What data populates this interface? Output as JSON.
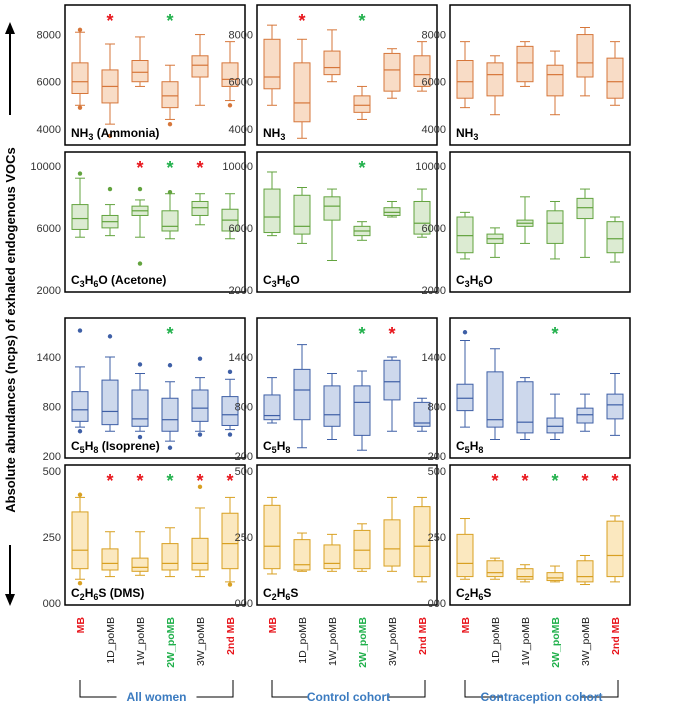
{
  "y_axis_label": "Absolute abundances (ncps) of exhaled endogenous VOCs",
  "x_categories": [
    "MB",
    "1D_poMB",
    "1W_poMB",
    "2W_poMB",
    "3W_poMB",
    "2nd MB"
  ],
  "category_colors": [
    "#e8141b",
    "#1a1a1a",
    "#1a1a1a",
    "#20b04b",
    "#1a1a1a",
    "#e8141b"
  ],
  "groups": [
    "All women",
    "Control cohort",
    "Contraception cohort"
  ],
  "group_label_color": "#3b7bc0",
  "significance_colors": {
    "red": "#e8141b",
    "green": "#20b04b"
  },
  "significance_symbol": "*",
  "rows": [
    {
      "compound": "NH3",
      "fill": "#f8dcc6",
      "stroke": "#d6763a",
      "yticks": [
        "8000",
        "6000",
        "4000"
      ],
      "ylim": [
        3400,
        9000
      ]
    },
    {
      "compound": "C3H6O",
      "fill": "#dcebd2",
      "stroke": "#62a33e",
      "yticks": [
        "10000",
        "6000",
        "2000"
      ],
      "ylim": [
        2000,
        10500
      ]
    },
    {
      "compound": "C5H8",
      "fill": "#cdd8ec",
      "stroke": "#3e5fa6",
      "yticks": [
        "1400",
        "800",
        "200"
      ],
      "ylim": [
        200,
        1800
      ]
    },
    {
      "compound": "C2H6S",
      "fill": "#fbe8bf",
      "stroke": "#d8a022",
      "yticks": [
        "500",
        "250",
        "000"
      ],
      "ylim": [
        0,
        500
      ]
    }
  ],
  "panel_labels": [
    [
      "NH3 (Ammonia)",
      "NH3",
      "NH3"
    ],
    [
      "C3H6O (Acetone)",
      "C3H6O",
      "C3H6O"
    ],
    [
      "C5H8 (Isoprene)",
      "C5H8",
      "C5H8"
    ],
    [
      "C2H6S (DMS)",
      "C2H6S",
      "C2H6S"
    ]
  ],
  "chart_data": {
    "type": "boxplot",
    "categories": [
      "MB",
      "1D_poMB",
      "1W_poMB",
      "2W_poMB",
      "3W_poMB",
      "2nd MB"
    ],
    "series": [
      {
        "name": "All women",
        "compound": "NH3",
        "boxes": [
          {
            "min": 5000,
            "q1": 5500,
            "median": 6000,
            "q3": 6800,
            "max": 8100,
            "outliers": [
              4900,
              8200
            ]
          },
          {
            "min": 4200,
            "q1": 5100,
            "median": 5800,
            "q3": 6500,
            "max": 7600,
            "outliers": [
              3700
            ]
          },
          {
            "min": 5800,
            "q1": 6000,
            "median": 6400,
            "q3": 6900,
            "max": 7900,
            "outliers": []
          },
          {
            "min": 4400,
            "q1": 4900,
            "median": 5400,
            "q3": 6000,
            "max": 6700,
            "outliers": [
              4200
            ]
          },
          {
            "min": 5000,
            "q1": 6200,
            "median": 6700,
            "q3": 7100,
            "max": 8000,
            "outliers": []
          },
          {
            "min": 5200,
            "q1": 5800,
            "median": 6100,
            "q3": 6800,
            "max": 7700,
            "outliers": [
              5000
            ]
          }
        ],
        "significance": [
          "",
          "red",
          "",
          "green",
          "",
          ""
        ]
      },
      {
        "name": "Control cohort",
        "compound": "NH3",
        "boxes": [
          {
            "min": 5000,
            "q1": 5700,
            "median": 6200,
            "q3": 7800,
            "max": 8400,
            "outliers": []
          },
          {
            "min": 3600,
            "q1": 4300,
            "median": 5100,
            "q3": 6800,
            "max": 7800,
            "outliers": []
          },
          {
            "min": 6000,
            "q1": 6300,
            "median": 6600,
            "q3": 7300,
            "max": 8200,
            "outliers": []
          },
          {
            "min": 4400,
            "q1": 4700,
            "median": 5000,
            "q3": 5400,
            "max": 5800,
            "outliers": []
          },
          {
            "min": 5300,
            "q1": 5600,
            "median": 6500,
            "q3": 7200,
            "max": 7400,
            "outliers": []
          },
          {
            "min": 5600,
            "q1": 5800,
            "median": 6300,
            "q3": 7100,
            "max": 7700,
            "outliers": []
          }
        ],
        "significance": [
          "",
          "red",
          "",
          "green",
          "",
          ""
        ]
      },
      {
        "name": "Contraception cohort",
        "compound": "NH3",
        "boxes": [
          {
            "min": 4900,
            "q1": 5300,
            "median": 6000,
            "q3": 6900,
            "max": 7700,
            "outliers": []
          },
          {
            "min": 4600,
            "q1": 5400,
            "median": 6300,
            "q3": 6800,
            "max": 7100,
            "outliers": []
          },
          {
            "min": 5800,
            "q1": 6000,
            "median": 6800,
            "q3": 7500,
            "max": 7700,
            "outliers": []
          },
          {
            "min": 4600,
            "q1": 5400,
            "median": 6300,
            "q3": 6700,
            "max": 7300,
            "outliers": []
          },
          {
            "min": 5400,
            "q1": 6200,
            "median": 6800,
            "q3": 8000,
            "max": 8300,
            "outliers": []
          },
          {
            "min": 5000,
            "q1": 5300,
            "median": 6000,
            "q3": 7000,
            "max": 7700,
            "outliers": []
          }
        ],
        "significance": [
          "",
          "",
          "",
          "",
          "",
          ""
        ]
      },
      {
        "name": "All women",
        "compound": "C3H6O",
        "boxes": [
          {
            "min": 5400,
            "q1": 5900,
            "median": 6600,
            "q3": 7500,
            "max": 9200,
            "outliers": [
              9500
            ]
          },
          {
            "min": 5500,
            "q1": 6000,
            "median": 6400,
            "q3": 6800,
            "max": 7500,
            "outliers": [
              8500
            ]
          },
          {
            "min": 5400,
            "q1": 6800,
            "median": 7100,
            "q3": 7400,
            "max": 7800,
            "outliers": [
              3700,
              8500
            ]
          },
          {
            "min": 5300,
            "q1": 5800,
            "median": 6100,
            "q3": 7100,
            "max": 8200,
            "outliers": [
              8300
            ]
          },
          {
            "min": 6200,
            "q1": 6800,
            "median": 7300,
            "q3": 7700,
            "max": 8200,
            "outliers": []
          },
          {
            "min": 5300,
            "q1": 5800,
            "median": 6500,
            "q3": 7200,
            "max": 8200,
            "outliers": []
          }
        ],
        "significance": [
          "",
          "",
          "red",
          "green",
          "red",
          ""
        ]
      },
      {
        "name": "Control cohort",
        "compound": "C3H6O",
        "boxes": [
          {
            "min": 5500,
            "q1": 5700,
            "median": 6700,
            "q3": 8500,
            "max": 9600,
            "outliers": []
          },
          {
            "min": 5000,
            "q1": 5600,
            "median": 6100,
            "q3": 8100,
            "max": 8600,
            "outliers": []
          },
          {
            "min": 3900,
            "q1": 6500,
            "median": 7400,
            "q3": 8000,
            "max": 8500,
            "outliers": []
          },
          {
            "min": 5200,
            "q1": 5500,
            "median": 5800,
            "q3": 6100,
            "max": 6400,
            "outliers": []
          },
          {
            "min": 6700,
            "q1": 6800,
            "median": 7000,
            "q3": 7300,
            "max": 7700,
            "outliers": []
          },
          {
            "min": 5400,
            "q1": 5600,
            "median": 6300,
            "q3": 7700,
            "max": 8500,
            "outliers": []
          }
        ],
        "significance": [
          "",
          "",
          "",
          "green",
          "",
          ""
        ]
      },
      {
        "name": "Contraception cohort",
        "compound": "C3H6O",
        "boxes": [
          {
            "min": 4000,
            "q1": 4400,
            "median": 5500,
            "q3": 6700,
            "max": 7000,
            "outliers": []
          },
          {
            "min": 4100,
            "q1": 5000,
            "median": 5300,
            "q3": 5600,
            "max": 6000,
            "outliers": []
          },
          {
            "min": 5000,
            "q1": 6100,
            "median": 6300,
            "q3": 6500,
            "max": 8000,
            "outliers": []
          },
          {
            "min": 4000,
            "q1": 5000,
            "median": 6300,
            "q3": 7100,
            "max": 7700,
            "outliers": []
          },
          {
            "min": 4100,
            "q1": 6600,
            "median": 7300,
            "q3": 7900,
            "max": 8500,
            "outliers": []
          },
          {
            "min": 3800,
            "q1": 4400,
            "median": 5300,
            "q3": 6400,
            "max": 6700,
            "outliers": []
          }
        ],
        "significance": [
          "",
          "",
          "",
          "",
          "",
          ""
        ]
      },
      {
        "name": "All women",
        "compound": "C5H8",
        "boxes": [
          {
            "min": 550,
            "q1": 620,
            "median": 760,
            "q3": 980,
            "max": 1280,
            "outliers": [
              500,
              1720
            ]
          },
          {
            "min": 500,
            "q1": 580,
            "median": 740,
            "q3": 1120,
            "max": 1400,
            "outliers": [
              1650
            ]
          },
          {
            "min": 500,
            "q1": 560,
            "median": 650,
            "q3": 1000,
            "max": 1200,
            "outliers": [
              430,
              1310
            ]
          },
          {
            "min": 380,
            "q1": 500,
            "median": 640,
            "q3": 900,
            "max": 1100,
            "outliers": [
              300,
              1300
            ]
          },
          {
            "min": 500,
            "q1": 620,
            "median": 780,
            "q3": 1000,
            "max": 1150,
            "outliers": [
              460,
              1380
            ]
          },
          {
            "min": 520,
            "q1": 570,
            "median": 700,
            "q3": 920,
            "max": 1130,
            "outliers": [
              460,
              1220
            ]
          }
        ],
        "significance": [
          "",
          "",
          "",
          "green",
          "",
          ""
        ]
      },
      {
        "name": "Control cohort",
        "compound": "C5H8",
        "boxes": [
          {
            "min": 600,
            "q1": 640,
            "median": 690,
            "q3": 940,
            "max": 1150,
            "outliers": []
          },
          {
            "min": 300,
            "q1": 640,
            "median": 1000,
            "q3": 1250,
            "max": 1550,
            "outliers": []
          },
          {
            "min": 400,
            "q1": 560,
            "median": 700,
            "q3": 1050,
            "max": 1200,
            "outliers": []
          },
          {
            "min": 270,
            "q1": 450,
            "median": 850,
            "q3": 1050,
            "max": 1230,
            "outliers": []
          },
          {
            "min": 500,
            "q1": 880,
            "median": 1100,
            "q3": 1360,
            "max": 1400,
            "outliers": []
          },
          {
            "min": 500,
            "q1": 560,
            "median": 600,
            "q3": 850,
            "max": 900,
            "outliers": []
          }
        ],
        "significance": [
          "",
          "",
          "",
          "green",
          "red",
          ""
        ]
      },
      {
        "name": "Contraception cohort",
        "compound": "C5H8",
        "boxes": [
          {
            "min": 550,
            "q1": 750,
            "median": 900,
            "q3": 1070,
            "max": 1600,
            "outliers": [
              1700
            ]
          },
          {
            "min": 400,
            "q1": 550,
            "median": 640,
            "q3": 1220,
            "max": 1500,
            "outliers": []
          },
          {
            "min": 400,
            "q1": 480,
            "median": 610,
            "q3": 1100,
            "max": 1150,
            "outliers": []
          },
          {
            "min": 400,
            "q1": 480,
            "median": 560,
            "q3": 660,
            "max": 950,
            "outliers": []
          },
          {
            "min": 500,
            "q1": 600,
            "median": 700,
            "q3": 780,
            "max": 950,
            "outliers": []
          },
          {
            "min": 450,
            "q1": 650,
            "median": 820,
            "q3": 950,
            "max": 1200,
            "outliers": []
          }
        ],
        "significance": [
          "",
          "",
          "",
          "green",
          "",
          ""
        ]
      },
      {
        "name": "All women",
        "compound": "C2H6S",
        "boxes": [
          {
            "min": 90,
            "q1": 130,
            "median": 200,
            "q3": 345,
            "max": 400,
            "outliers": [
              75,
              410
            ]
          },
          {
            "min": 100,
            "q1": 125,
            "median": 150,
            "q3": 205,
            "max": 270,
            "outliers": []
          },
          {
            "min": 105,
            "q1": 120,
            "median": 135,
            "q3": 170,
            "max": 270,
            "outliers": []
          },
          {
            "min": 100,
            "q1": 125,
            "median": 150,
            "q3": 225,
            "max": 285,
            "outliers": []
          },
          {
            "min": 100,
            "q1": 125,
            "median": 150,
            "q3": 245,
            "max": 360,
            "outliers": [
              440
            ]
          },
          {
            "min": 80,
            "q1": 130,
            "median": 225,
            "q3": 340,
            "max": 400,
            "outliers": [
              70
            ]
          }
        ],
        "significance": [
          "",
          "red",
          "red",
          "green",
          "red",
          "red"
        ]
      },
      {
        "name": "Control cohort",
        "compound": "C2H6S",
        "boxes": [
          {
            "min": 110,
            "q1": 130,
            "median": 215,
            "q3": 370,
            "max": 400,
            "outliers": []
          },
          {
            "min": 120,
            "q1": 125,
            "median": 145,
            "q3": 240,
            "max": 265,
            "outliers": []
          },
          {
            "min": 120,
            "q1": 130,
            "median": 150,
            "q3": 220,
            "max": 260,
            "outliers": []
          },
          {
            "min": 120,
            "q1": 130,
            "median": 200,
            "q3": 275,
            "max": 300,
            "outliers": []
          },
          {
            "min": 120,
            "q1": 140,
            "median": 205,
            "q3": 315,
            "max": 400,
            "outliers": []
          },
          {
            "min": 80,
            "q1": 100,
            "median": 215,
            "q3": 365,
            "max": 400,
            "outliers": []
          }
        ],
        "significance": [
          "",
          "",
          "",
          "",
          "",
          ""
        ]
      },
      {
        "name": "Contraception cohort",
        "compound": "C2H6S",
        "boxes": [
          {
            "min": 90,
            "q1": 100,
            "median": 150,
            "q3": 260,
            "max": 320,
            "outliers": []
          },
          {
            "min": 90,
            "q1": 100,
            "median": 115,
            "q3": 160,
            "max": 170,
            "outliers": []
          },
          {
            "min": 80,
            "q1": 90,
            "median": 100,
            "q3": 130,
            "max": 145,
            "outliers": []
          },
          {
            "min": 80,
            "q1": 85,
            "median": 95,
            "q3": 115,
            "max": 140,
            "outliers": []
          },
          {
            "min": 70,
            "q1": 80,
            "median": 100,
            "q3": 160,
            "max": 180,
            "outliers": []
          },
          {
            "min": 80,
            "q1": 100,
            "median": 180,
            "q3": 310,
            "max": 330,
            "outliers": []
          }
        ],
        "significance": [
          "",
          "red",
          "red",
          "green",
          "red",
          "red"
        ]
      }
    ]
  }
}
